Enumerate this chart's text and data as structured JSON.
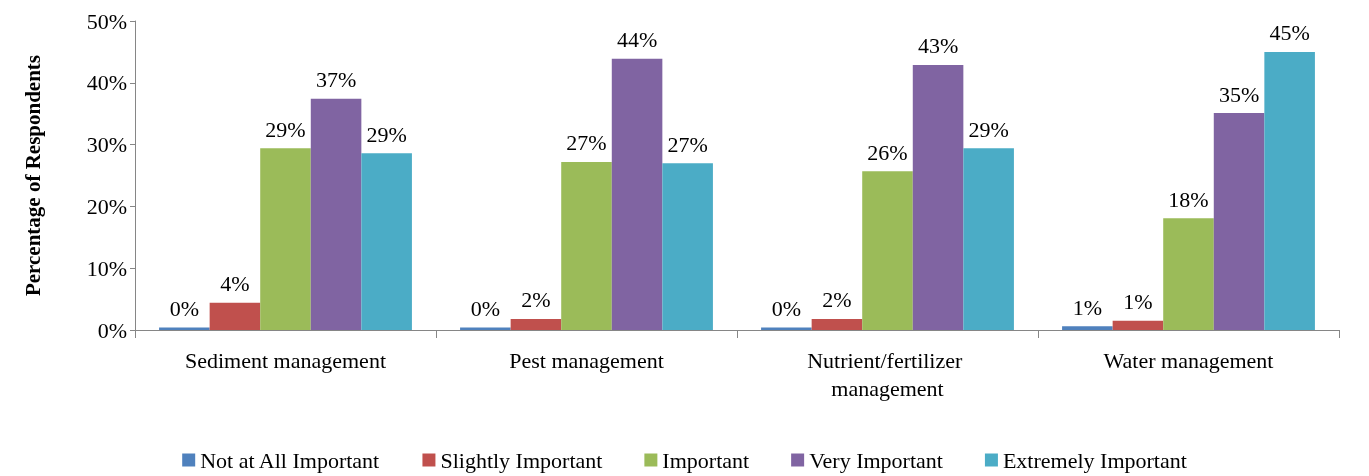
{
  "chart_data": {
    "type": "bar",
    "ylabel": "Percentage of Respondents",
    "categories": [
      "Sediment management",
      "Pest management",
      "Nutrient/fertilizer management",
      "Water management"
    ],
    "series": [
      {
        "name": "Not at All Important",
        "color": "#4f81bd",
        "values": [
          0.4,
          0.4,
          0.4,
          0.6
        ],
        "value_labels": [
          "0%",
          "0%",
          "0%",
          "1%"
        ]
      },
      {
        "name": "Slightly Important",
        "color": "#c0504d",
        "values": [
          4.4,
          1.8,
          1.8,
          1.5
        ],
        "value_labels": [
          "4%",
          "2%",
          "2%",
          "1%"
        ]
      },
      {
        "name": "Important",
        "color": "#9bbb59",
        "values": [
          29.4,
          27.2,
          25.7,
          18.1
        ],
        "value_labels": [
          "29%",
          "27%",
          "26%",
          "18%"
        ]
      },
      {
        "name": "Very Important",
        "color": "#8064a2",
        "values": [
          37.4,
          43.9,
          42.9,
          35.1
        ],
        "value_labels": [
          "37%",
          "44%",
          "43%",
          "35%"
        ]
      },
      {
        "name": "Extremely Important",
        "color": "#4bacc6",
        "values": [
          28.6,
          27.0,
          29.4,
          45.0
        ],
        "value_labels": [
          "29%",
          "27%",
          "29%",
          "45%"
        ]
      }
    ],
    "ylim": [
      0,
      50
    ],
    "yticks": [
      {
        "value": 0,
        "label": "0%"
      },
      {
        "value": 10,
        "label": "10%"
      },
      {
        "value": 20,
        "label": "20%"
      },
      {
        "value": 30,
        "label": "30%"
      },
      {
        "value": 40,
        "label": "40%"
      },
      {
        "value": 50,
        "label": "50%"
      }
    ],
    "grid": false,
    "legend": "bottom"
  }
}
